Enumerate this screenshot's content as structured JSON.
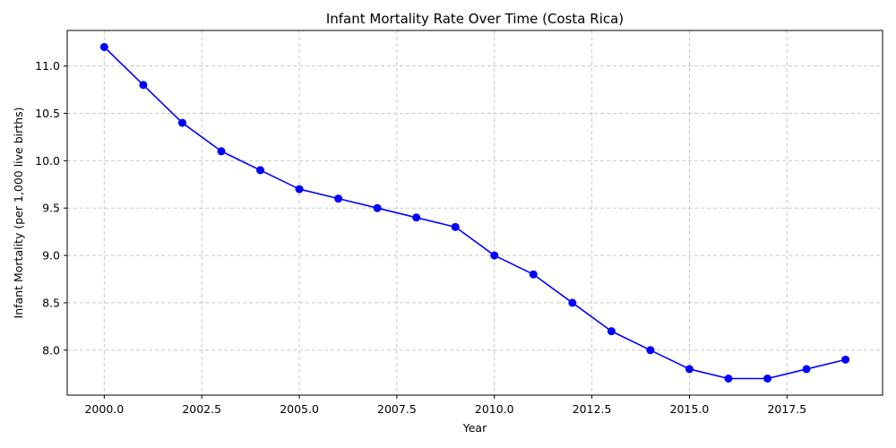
{
  "chart_data": {
    "type": "line",
    "title": "Infant Mortality Rate Over Time (Costa Rica)",
    "xlabel": "Year",
    "ylabel": "Infant Mortality (per 1,000 live births)",
    "xlim": [
      1999.05,
      2019.95
    ],
    "ylim": [
      7.525,
      11.375
    ],
    "xticks": [
      2000.0,
      2002.5,
      2005.0,
      2007.5,
      2010.0,
      2012.5,
      2015.0,
      2017.5
    ],
    "xtick_labels": [
      "2000.0",
      "2002.5",
      "2005.0",
      "2007.5",
      "2010.0",
      "2012.5",
      "2015.0",
      "2017.5"
    ],
    "yticks": [
      8.0,
      8.5,
      9.0,
      9.5,
      10.0,
      10.5,
      11.0
    ],
    "ytick_labels": [
      "8.0",
      "8.5",
      "9.0",
      "9.5",
      "10.0",
      "10.5",
      "11.0"
    ],
    "grid": true,
    "line_color": "#0000ff",
    "grid_color": "#c8c8c8",
    "series": [
      {
        "x": [
          2000,
          2001,
          2002,
          2003,
          2004,
          2005,
          2006,
          2007,
          2008,
          2009,
          2010,
          2011,
          2012,
          2013,
          2014,
          2015,
          2016,
          2017,
          2018,
          2019
        ],
        "values": [
          11.2,
          10.8,
          10.4,
          10.1,
          9.9,
          9.7,
          9.6,
          9.5,
          9.4,
          9.3,
          9.0,
          8.8,
          8.5,
          8.2,
          8.0,
          7.8,
          7.7,
          7.7,
          7.8,
          7.9
        ]
      }
    ]
  }
}
